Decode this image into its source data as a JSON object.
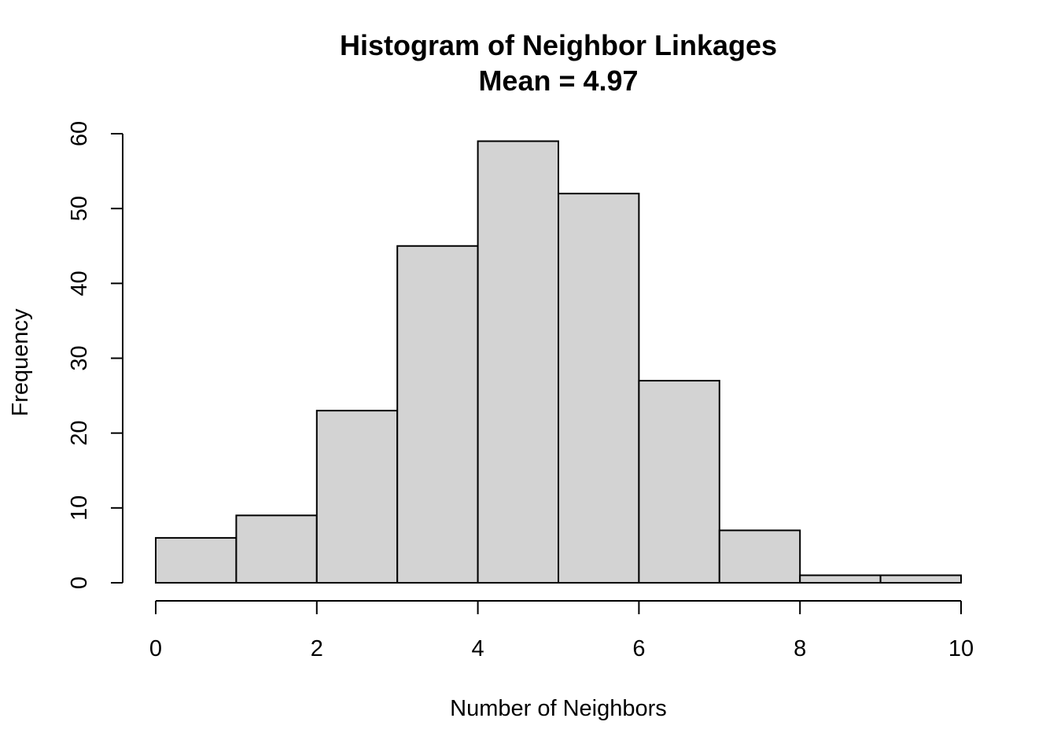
{
  "chart_data": {
    "type": "bar",
    "subtype": "histogram",
    "title": "Histogram of Neighbor Linkages",
    "subtitle": "Mean = 4.97",
    "xlabel": "Number of Neighbors",
    "ylabel": "Frequency",
    "bins": [
      {
        "x0": 0,
        "x1": 1,
        "value": 6
      },
      {
        "x0": 1,
        "x1": 2,
        "value": 9
      },
      {
        "x0": 2,
        "x1": 3,
        "value": 23
      },
      {
        "x0": 3,
        "x1": 4,
        "value": 45
      },
      {
        "x0": 4,
        "x1": 5,
        "value": 59
      },
      {
        "x0": 5,
        "x1": 6,
        "value": 52
      },
      {
        "x0": 6,
        "x1": 7,
        "value": 27
      },
      {
        "x0": 7,
        "x1": 8,
        "value": 7
      },
      {
        "x0": 8,
        "x1": 9,
        "value": 1
      },
      {
        "x0": 9,
        "x1": 10,
        "value": 1
      }
    ],
    "xlim": [
      0,
      10
    ],
    "ylim": [
      0,
      60
    ],
    "xticks": [
      0,
      2,
      4,
      6,
      8,
      10
    ],
    "yticks": [
      0,
      10,
      20,
      30,
      40,
      50,
      60
    ],
    "grid": false,
    "bar_color": "#d3d3d3",
    "edge_color": "#000000"
  }
}
